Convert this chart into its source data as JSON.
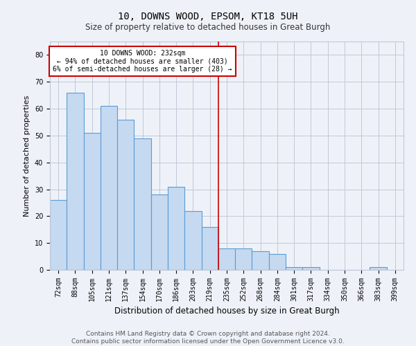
{
  "title": "10, DOWNS WOOD, EPSOM, KT18 5UH",
  "subtitle": "Size of property relative to detached houses in Great Burgh",
  "xlabel": "Distribution of detached houses by size in Great Burgh",
  "ylabel": "Number of detached properties",
  "categories": [
    "72sqm",
    "88sqm",
    "105sqm",
    "121sqm",
    "137sqm",
    "154sqm",
    "170sqm",
    "186sqm",
    "203sqm",
    "219sqm",
    "235sqm",
    "252sqm",
    "268sqm",
    "284sqm",
    "301sqm",
    "317sqm",
    "334sqm",
    "350sqm",
    "366sqm",
    "383sqm",
    "399sqm"
  ],
  "values": [
    26,
    66,
    51,
    61,
    56,
    49,
    28,
    31,
    22,
    16,
    8,
    8,
    7,
    6,
    1,
    1,
    0,
    0,
    0,
    1,
    0
  ],
  "bar_color": "#c5d9f0",
  "bar_edgecolor": "#5b9bd5",
  "bar_linewidth": 0.8,
  "annotation_text": "10 DOWNS WOOD: 232sqm",
  "annotation_line1": "← 94% of detached houses are smaller (403)",
  "annotation_line2": "6% of semi-detached houses are larger (28) →",
  "annotation_box_color": "#ffffff",
  "annotation_box_edgecolor": "#cc0000",
  "vline_color": "#cc0000",
  "vline_x_index": 9.5,
  "ylim": [
    0,
    85
  ],
  "yticks": [
    0,
    10,
    20,
    30,
    40,
    50,
    60,
    70,
    80
  ],
  "grid_color": "#c0c8d8",
  "bg_color": "#eef2f8",
  "footer1": "Contains HM Land Registry data © Crown copyright and database right 2024.",
  "footer2": "Contains public sector information licensed under the Open Government Licence v3.0.",
  "title_fontsize": 10,
  "subtitle_fontsize": 8.5,
  "tick_fontsize": 7,
  "ylabel_fontsize": 8,
  "xlabel_fontsize": 8.5,
  "footer_fontsize": 6.5,
  "ann_fontsize": 7
}
